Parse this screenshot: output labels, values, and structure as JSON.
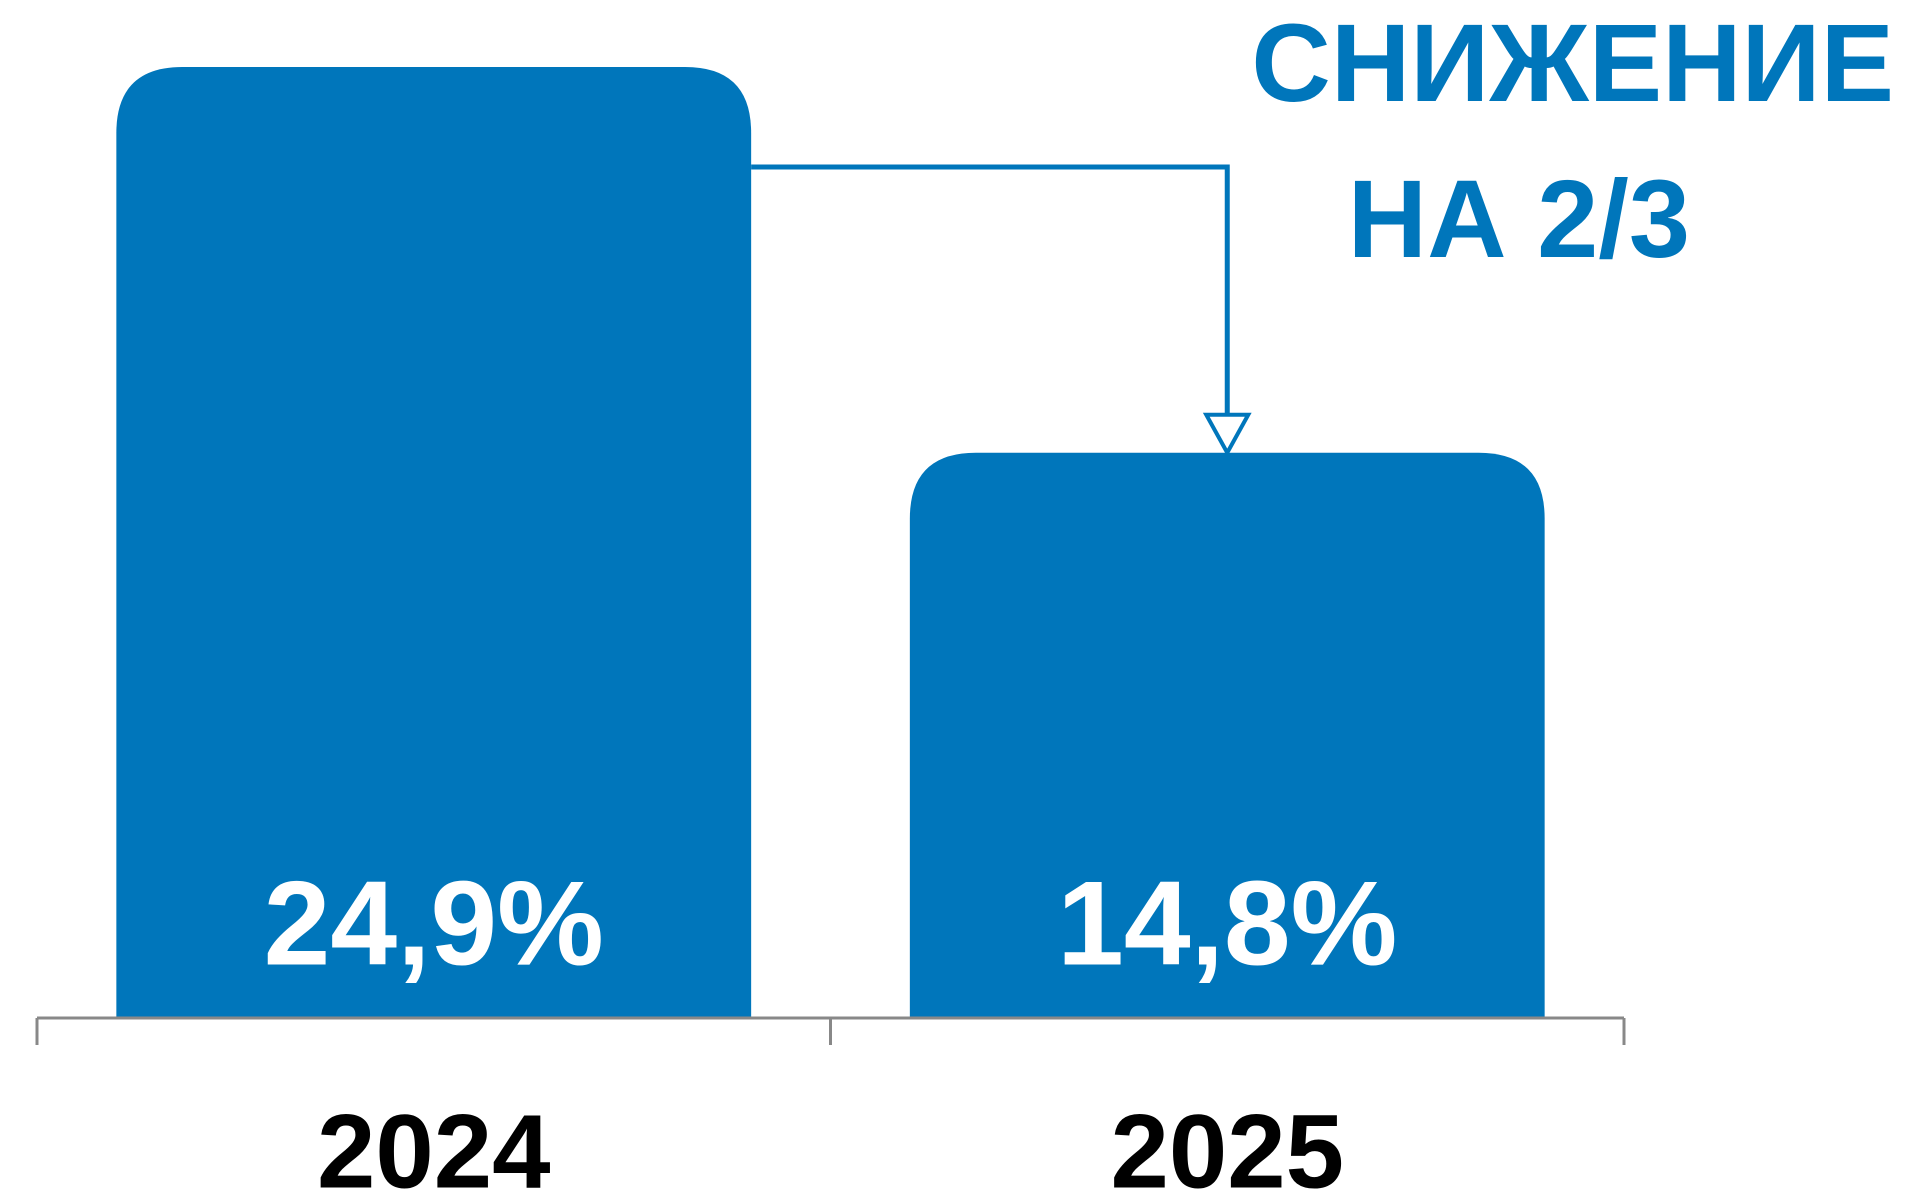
{
  "chart_data": {
    "type": "bar",
    "annotation": [
      "СНИЖЕНИЕ",
      "НА 2/3"
    ],
    "categories": [
      "2024",
      "2025"
    ],
    "values": [
      24.9,
      14.8
    ],
    "value_labels": [
      "24,9%",
      "14,8%"
    ],
    "color": "#0076bb"
  }
}
